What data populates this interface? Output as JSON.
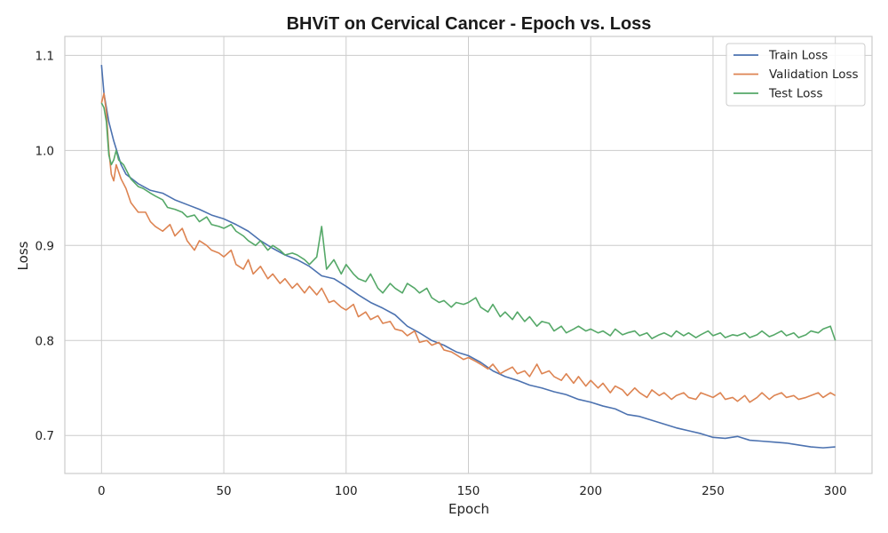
{
  "chart_data": {
    "type": "line",
    "title": "BHViT on Cervical Cancer - Epoch vs. Loss",
    "xlabel": "Epoch",
    "ylabel": "Loss",
    "xlim": [
      -15,
      315
    ],
    "ylim": [
      0.66,
      1.12
    ],
    "xticks": [
      0,
      50,
      100,
      150,
      200,
      250,
      300
    ],
    "yticks": [
      0.7,
      0.8,
      0.9,
      1.0,
      1.1
    ],
    "xtick_labels": [
      "0",
      "50",
      "100",
      "150",
      "200",
      "250",
      "300"
    ],
    "ytick_labels": [
      "0.7",
      "0.8",
      "0.9",
      "1.0",
      "1.1"
    ],
    "grid": true,
    "legend_position": "top-right",
    "series": [
      {
        "name": "Train Loss",
        "color": "#4c72b0",
        "points": [
          [
            0,
            1.09
          ],
          [
            1,
            1.06
          ],
          [
            2,
            1.045
          ],
          [
            3,
            1.03
          ],
          [
            5,
            1.01
          ],
          [
            8,
            0.985
          ],
          [
            10,
            0.975
          ],
          [
            15,
            0.965
          ],
          [
            20,
            0.958
          ],
          [
            25,
            0.955
          ],
          [
            30,
            0.948
          ],
          [
            35,
            0.943
          ],
          [
            40,
            0.938
          ],
          [
            45,
            0.932
          ],
          [
            50,
            0.928
          ],
          [
            55,
            0.922
          ],
          [
            60,
            0.915
          ],
          [
            65,
            0.905
          ],
          [
            70,
            0.897
          ],
          [
            75,
            0.89
          ],
          [
            80,
            0.885
          ],
          [
            85,
            0.878
          ],
          [
            90,
            0.868
          ],
          [
            95,
            0.865
          ],
          [
            100,
            0.857
          ],
          [
            105,
            0.848
          ],
          [
            110,
            0.84
          ],
          [
            115,
            0.834
          ],
          [
            120,
            0.827
          ],
          [
            125,
            0.815
          ],
          [
            130,
            0.808
          ],
          [
            135,
            0.8
          ],
          [
            140,
            0.795
          ],
          [
            145,
            0.788
          ],
          [
            150,
            0.784
          ],
          [
            155,
            0.777
          ],
          [
            160,
            0.768
          ],
          [
            165,
            0.762
          ],
          [
            170,
            0.758
          ],
          [
            175,
            0.753
          ],
          [
            180,
            0.75
          ],
          [
            185,
            0.746
          ],
          [
            190,
            0.743
          ],
          [
            195,
            0.738
          ],
          [
            200,
            0.735
          ],
          [
            205,
            0.731
          ],
          [
            210,
            0.728
          ],
          [
            215,
            0.722
          ],
          [
            220,
            0.72
          ],
          [
            225,
            0.716
          ],
          [
            230,
            0.712
          ],
          [
            235,
            0.708
          ],
          [
            240,
            0.705
          ],
          [
            245,
            0.702
          ],
          [
            250,
            0.698
          ],
          [
            255,
            0.697
          ],
          [
            260,
            0.699
          ],
          [
            265,
            0.695
          ],
          [
            270,
            0.694
          ],
          [
            275,
            0.693
          ],
          [
            280,
            0.692
          ],
          [
            285,
            0.69
          ],
          [
            290,
            0.688
          ],
          [
            295,
            0.687
          ],
          [
            300,
            0.688
          ]
        ]
      },
      {
        "name": "Validation Loss",
        "color": "#dd8452",
        "points": [
          [
            0,
            1.05
          ],
          [
            1,
            1.06
          ],
          [
            2,
            1.04
          ],
          [
            3,
            1.0
          ],
          [
            4,
            0.975
          ],
          [
            5,
            0.968
          ],
          [
            6,
            0.985
          ],
          [
            8,
            0.97
          ],
          [
            10,
            0.96
          ],
          [
            12,
            0.945
          ],
          [
            15,
            0.935
          ],
          [
            18,
            0.935
          ],
          [
            20,
            0.925
          ],
          [
            22,
            0.92
          ],
          [
            25,
            0.915
          ],
          [
            28,
            0.922
          ],
          [
            30,
            0.91
          ],
          [
            33,
            0.918
          ],
          [
            35,
            0.905
          ],
          [
            38,
            0.895
          ],
          [
            40,
            0.905
          ],
          [
            43,
            0.9
          ],
          [
            45,
            0.895
          ],
          [
            48,
            0.892
          ],
          [
            50,
            0.888
          ],
          [
            53,
            0.895
          ],
          [
            55,
            0.88
          ],
          [
            58,
            0.875
          ],
          [
            60,
            0.885
          ],
          [
            62,
            0.87
          ],
          [
            65,
            0.878
          ],
          [
            68,
            0.865
          ],
          [
            70,
            0.87
          ],
          [
            73,
            0.86
          ],
          [
            75,
            0.865
          ],
          [
            78,
            0.855
          ],
          [
            80,
            0.86
          ],
          [
            83,
            0.85
          ],
          [
            85,
            0.857
          ],
          [
            88,
            0.848
          ],
          [
            90,
            0.855
          ],
          [
            93,
            0.84
          ],
          [
            95,
            0.842
          ],
          [
            98,
            0.835
          ],
          [
            100,
            0.832
          ],
          [
            103,
            0.838
          ],
          [
            105,
            0.825
          ],
          [
            108,
            0.83
          ],
          [
            110,
            0.822
          ],
          [
            113,
            0.826
          ],
          [
            115,
            0.818
          ],
          [
            118,
            0.82
          ],
          [
            120,
            0.812
          ],
          [
            123,
            0.81
          ],
          [
            125,
            0.805
          ],
          [
            128,
            0.81
          ],
          [
            130,
            0.798
          ],
          [
            133,
            0.8
          ],
          [
            135,
            0.795
          ],
          [
            138,
            0.798
          ],
          [
            140,
            0.79
          ],
          [
            143,
            0.788
          ],
          [
            145,
            0.785
          ],
          [
            148,
            0.78
          ],
          [
            150,
            0.782
          ],
          [
            153,
            0.778
          ],
          [
            155,
            0.775
          ],
          [
            158,
            0.77
          ],
          [
            160,
            0.775
          ],
          [
            163,
            0.765
          ],
          [
            165,
            0.768
          ],
          [
            168,
            0.772
          ],
          [
            170,
            0.765
          ],
          [
            173,
            0.768
          ],
          [
            175,
            0.762
          ],
          [
            178,
            0.775
          ],
          [
            180,
            0.765
          ],
          [
            183,
            0.768
          ],
          [
            185,
            0.762
          ],
          [
            188,
            0.758
          ],
          [
            190,
            0.765
          ],
          [
            193,
            0.755
          ],
          [
            195,
            0.762
          ],
          [
            198,
            0.752
          ],
          [
            200,
            0.758
          ],
          [
            203,
            0.75
          ],
          [
            205,
            0.755
          ],
          [
            208,
            0.745
          ],
          [
            210,
            0.752
          ],
          [
            213,
            0.748
          ],
          [
            215,
            0.742
          ],
          [
            218,
            0.75
          ],
          [
            220,
            0.745
          ],
          [
            223,
            0.74
          ],
          [
            225,
            0.748
          ],
          [
            228,
            0.742
          ],
          [
            230,
            0.745
          ],
          [
            233,
            0.738
          ],
          [
            235,
            0.742
          ],
          [
            238,
            0.745
          ],
          [
            240,
            0.74
          ],
          [
            243,
            0.738
          ],
          [
            245,
            0.745
          ],
          [
            248,
            0.742
          ],
          [
            250,
            0.74
          ],
          [
            253,
            0.745
          ],
          [
            255,
            0.738
          ],
          [
            258,
            0.74
          ],
          [
            260,
            0.736
          ],
          [
            263,
            0.742
          ],
          [
            265,
            0.735
          ],
          [
            268,
            0.74
          ],
          [
            270,
            0.745
          ],
          [
            273,
            0.738
          ],
          [
            275,
            0.742
          ],
          [
            278,
            0.745
          ],
          [
            280,
            0.74
          ],
          [
            283,
            0.742
          ],
          [
            285,
            0.738
          ],
          [
            288,
            0.74
          ],
          [
            290,
            0.742
          ],
          [
            293,
            0.745
          ],
          [
            295,
            0.74
          ],
          [
            298,
            0.745
          ],
          [
            300,
            0.742
          ]
        ]
      },
      {
        "name": "Test Loss",
        "color": "#55a868",
        "points": [
          [
            0,
            1.05
          ],
          [
            1,
            1.045
          ],
          [
            2,
            1.03
          ],
          [
            3,
            0.995
          ],
          [
            4,
            0.985
          ],
          [
            5,
            0.99
          ],
          [
            6,
            1.0
          ],
          [
            7,
            0.99
          ],
          [
            9,
            0.985
          ],
          [
            12,
            0.97
          ],
          [
            15,
            0.962
          ],
          [
            17,
            0.96
          ],
          [
            20,
            0.955
          ],
          [
            22,
            0.952
          ],
          [
            25,
            0.948
          ],
          [
            27,
            0.94
          ],
          [
            30,
            0.938
          ],
          [
            33,
            0.935
          ],
          [
            35,
            0.93
          ],
          [
            38,
            0.932
          ],
          [
            40,
            0.925
          ],
          [
            43,
            0.93
          ],
          [
            45,
            0.922
          ],
          [
            48,
            0.92
          ],
          [
            50,
            0.918
          ],
          [
            53,
            0.922
          ],
          [
            55,
            0.915
          ],
          [
            58,
            0.91
          ],
          [
            60,
            0.905
          ],
          [
            63,
            0.9
          ],
          [
            65,
            0.905
          ],
          [
            68,
            0.895
          ],
          [
            70,
            0.9
          ],
          [
            73,
            0.895
          ],
          [
            75,
            0.89
          ],
          [
            78,
            0.892
          ],
          [
            80,
            0.89
          ],
          [
            83,
            0.885
          ],
          [
            85,
            0.88
          ],
          [
            88,
            0.888
          ],
          [
            90,
            0.92
          ],
          [
            92,
            0.875
          ],
          [
            95,
            0.885
          ],
          [
            98,
            0.87
          ],
          [
            100,
            0.88
          ],
          [
            103,
            0.87
          ],
          [
            105,
            0.865
          ],
          [
            108,
            0.862
          ],
          [
            110,
            0.87
          ],
          [
            113,
            0.855
          ],
          [
            115,
            0.85
          ],
          [
            118,
            0.86
          ],
          [
            120,
            0.855
          ],
          [
            123,
            0.85
          ],
          [
            125,
            0.86
          ],
          [
            128,
            0.855
          ],
          [
            130,
            0.85
          ],
          [
            133,
            0.855
          ],
          [
            135,
            0.845
          ],
          [
            138,
            0.84
          ],
          [
            140,
            0.842
          ],
          [
            143,
            0.835
          ],
          [
            145,
            0.84
          ],
          [
            148,
            0.838
          ],
          [
            150,
            0.84
          ],
          [
            153,
            0.845
          ],
          [
            155,
            0.835
          ],
          [
            158,
            0.83
          ],
          [
            160,
            0.838
          ],
          [
            163,
            0.825
          ],
          [
            165,
            0.83
          ],
          [
            168,
            0.822
          ],
          [
            170,
            0.83
          ],
          [
            173,
            0.82
          ],
          [
            175,
            0.825
          ],
          [
            178,
            0.815
          ],
          [
            180,
            0.82
          ],
          [
            183,
            0.818
          ],
          [
            185,
            0.81
          ],
          [
            188,
            0.815
          ],
          [
            190,
            0.808
          ],
          [
            193,
            0.812
          ],
          [
            195,
            0.815
          ],
          [
            198,
            0.81
          ],
          [
            200,
            0.812
          ],
          [
            203,
            0.808
          ],
          [
            205,
            0.81
          ],
          [
            208,
            0.805
          ],
          [
            210,
            0.812
          ],
          [
            213,
            0.806
          ],
          [
            215,
            0.808
          ],
          [
            218,
            0.81
          ],
          [
            220,
            0.805
          ],
          [
            223,
            0.808
          ],
          [
            225,
            0.802
          ],
          [
            228,
            0.806
          ],
          [
            230,
            0.808
          ],
          [
            233,
            0.804
          ],
          [
            235,
            0.81
          ],
          [
            238,
            0.805
          ],
          [
            240,
            0.808
          ],
          [
            243,
            0.803
          ],
          [
            245,
            0.806
          ],
          [
            248,
            0.81
          ],
          [
            250,
            0.805
          ],
          [
            253,
            0.808
          ],
          [
            255,
            0.803
          ],
          [
            258,
            0.806
          ],
          [
            260,
            0.805
          ],
          [
            263,
            0.808
          ],
          [
            265,
            0.803
          ],
          [
            268,
            0.806
          ],
          [
            270,
            0.81
          ],
          [
            273,
            0.804
          ],
          [
            275,
            0.806
          ],
          [
            278,
            0.81
          ],
          [
            280,
            0.805
          ],
          [
            283,
            0.808
          ],
          [
            285,
            0.803
          ],
          [
            288,
            0.806
          ],
          [
            290,
            0.81
          ],
          [
            293,
            0.808
          ],
          [
            295,
            0.812
          ],
          [
            298,
            0.815
          ],
          [
            300,
            0.8
          ]
        ]
      }
    ]
  }
}
